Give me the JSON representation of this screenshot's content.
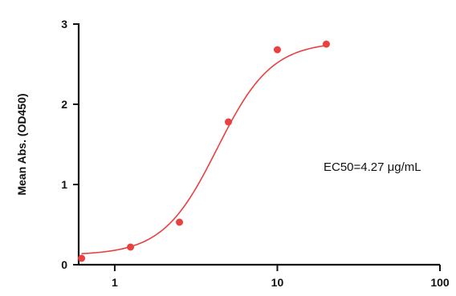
{
  "chart_data": {
    "type": "scatter",
    "title": "",
    "xlabel": "",
    "ylabel": "Mean Abs. (OD450)",
    "xscale": "log",
    "xlim": [
      0.6,
      100
    ],
    "ylim": [
      0,
      3
    ],
    "grid": false,
    "x_ticks": [
      1,
      10,
      100
    ],
    "x_tick_labels": [
      "1",
      "10",
      "100"
    ],
    "y_ticks": [
      0,
      1,
      2,
      3
    ],
    "y_tick_labels": [
      "0",
      "1",
      "2",
      "3"
    ],
    "points": {
      "x": [
        0.625,
        1.25,
        2.5,
        5,
        10,
        20
      ],
      "y": [
        0.08,
        0.22,
        0.53,
        1.78,
        2.68,
        2.75
      ]
    },
    "fit": {
      "model": "4PL",
      "bottom": 0.12,
      "top": 2.78,
      "ec50": 4.27,
      "hill": 2.6
    },
    "annotation": "EC50=4.27 μg/mL",
    "colors": {
      "series": "#e8413f",
      "axis": "#111111"
    }
  }
}
